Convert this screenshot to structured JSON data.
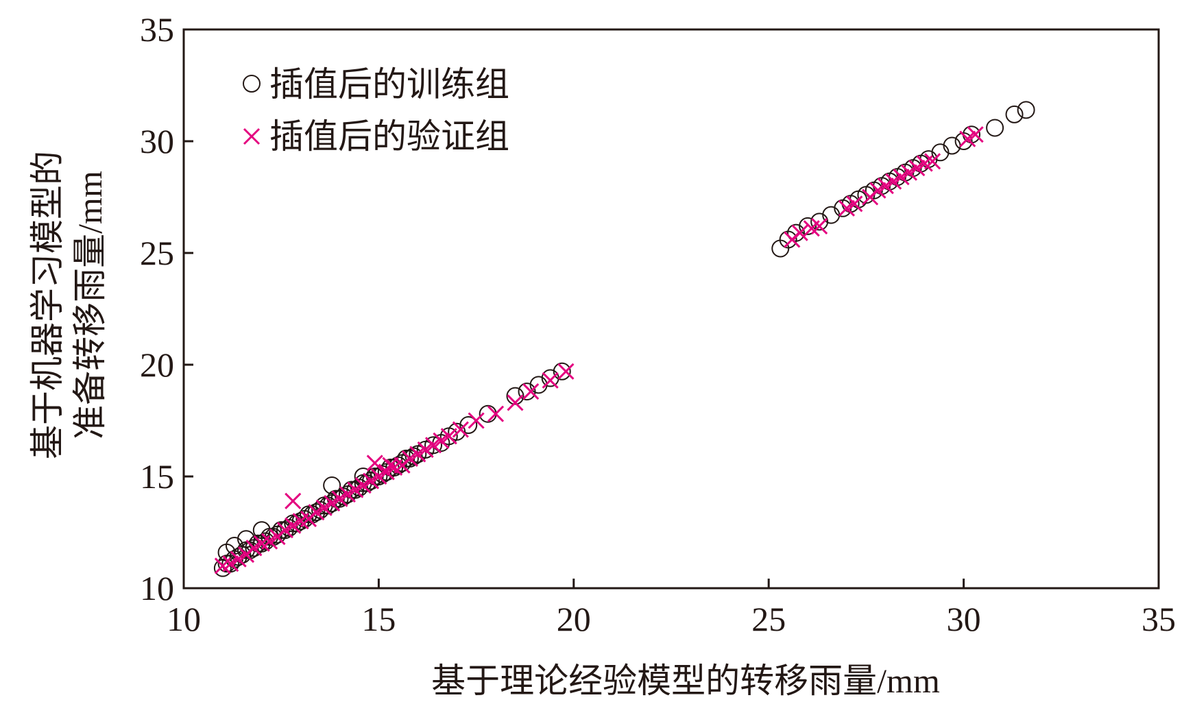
{
  "chart_data": {
    "type": "scatter",
    "xlabel": "基于理论经验模型的转移雨量/mm",
    "ylabel_lines": [
      "基于机器学习模型的",
      "准备转移雨量/mm"
    ],
    "xlim": [
      10,
      35
    ],
    "ylim": [
      10,
      35
    ],
    "xticks": [
      10,
      15,
      20,
      25,
      30,
      35
    ],
    "yticks": [
      10,
      15,
      20,
      25,
      30,
      35
    ],
    "xtick_labels": [
      "10",
      "15",
      "20",
      "25",
      "30",
      "35"
    ],
    "ytick_labels": [
      "10",
      "15",
      "20",
      "25",
      "30",
      "35"
    ],
    "grid": false,
    "legend_position": "top-left",
    "colors": {
      "train": "#231815",
      "validation": "#e4007f",
      "axis": "#231815"
    },
    "series": [
      {
        "name": "插值后的训练组",
        "marker": "circle",
        "x": [
          11.0,
          11.1,
          11.2,
          11.3,
          11.4,
          11.5,
          11.6,
          11.7,
          11.8,
          11.9,
          12.0,
          12.1,
          12.2,
          12.3,
          12.4,
          12.5,
          12.6,
          12.7,
          12.8,
          12.9,
          13.0,
          13.1,
          13.2,
          13.3,
          13.4,
          13.5,
          13.6,
          13.7,
          13.8,
          13.9,
          14.0,
          14.1,
          14.2,
          14.3,
          14.4,
          14.5,
          14.6,
          14.7,
          14.8,
          14.9,
          15.0,
          15.1,
          15.2,
          15.3,
          15.4,
          15.5,
          15.6,
          15.7,
          15.8,
          15.9,
          16.0,
          16.2,
          16.4,
          16.6,
          16.8,
          17.0,
          17.3,
          17.8,
          18.5,
          18.8,
          19.1,
          19.4,
          19.7,
          11.1,
          11.3,
          11.6,
          12.0,
          13.8,
          14.6,
          25.3,
          25.5,
          25.7,
          26.0,
          26.3,
          26.6,
          26.9,
          27.1,
          27.3,
          27.5,
          27.7,
          27.9,
          28.1,
          28.3,
          28.5,
          28.7,
          28.9,
          29.1,
          29.4,
          29.7,
          30.0,
          30.2,
          30.8,
          31.3,
          31.6
        ],
        "y": [
          10.9,
          11.1,
          11.1,
          11.3,
          11.4,
          11.5,
          11.7,
          11.7,
          11.8,
          12.0,
          12.0,
          12.1,
          12.3,
          12.3,
          12.4,
          12.6,
          12.6,
          12.7,
          12.9,
          12.9,
          13.0,
          13.1,
          13.3,
          13.3,
          13.4,
          13.5,
          13.7,
          13.7,
          13.8,
          14.0,
          14.0,
          14.1,
          14.2,
          14.4,
          14.4,
          14.5,
          14.7,
          14.7,
          14.8,
          15.0,
          15.0,
          15.1,
          15.2,
          15.4,
          15.4,
          15.5,
          15.6,
          15.8,
          15.8,
          15.9,
          16.0,
          16.2,
          16.4,
          16.5,
          16.8,
          17.0,
          17.3,
          17.8,
          18.6,
          18.8,
          19.1,
          19.4,
          19.7,
          11.6,
          11.9,
          12.2,
          12.6,
          14.6,
          15.0,
          25.2,
          25.6,
          25.9,
          26.2,
          26.4,
          26.7,
          27.0,
          27.2,
          27.4,
          27.6,
          27.8,
          28.0,
          28.2,
          28.4,
          28.6,
          28.8,
          29.0,
          29.2,
          29.5,
          29.8,
          30.0,
          30.3,
          30.6,
          31.2,
          31.4
        ]
      },
      {
        "name": "插值后的验证组",
        "marker": "cross",
        "x": [
          11.0,
          11.2,
          11.4,
          11.6,
          11.8,
          12.0,
          12.2,
          12.4,
          12.6,
          12.8,
          13.0,
          13.2,
          13.4,
          13.6,
          13.8,
          14.0,
          14.2,
          14.4,
          14.6,
          14.8,
          15.0,
          15.2,
          15.4,
          15.6,
          15.8,
          16.0,
          16.2,
          16.4,
          16.6,
          16.8,
          17.1,
          17.5,
          18.0,
          18.5,
          18.9,
          19.4,
          19.8,
          12.8,
          14.9,
          15.3,
          25.6,
          25.8,
          26.1,
          26.3,
          27.0,
          27.2,
          27.6,
          27.8,
          28.0,
          28.2,
          28.4,
          28.6,
          28.8,
          29.0,
          29.2,
          30.1,
          30.3
        ],
        "y": [
          11.0,
          11.1,
          11.3,
          11.5,
          11.8,
          12.0,
          12.1,
          12.3,
          12.6,
          12.8,
          13.0,
          13.1,
          13.4,
          13.6,
          13.8,
          14.0,
          14.2,
          14.4,
          14.6,
          14.8,
          15.0,
          15.2,
          15.4,
          15.5,
          15.8,
          16.0,
          16.2,
          16.4,
          16.6,
          16.8,
          17.1,
          17.5,
          17.8,
          18.3,
          18.8,
          19.3,
          19.7,
          13.9,
          15.6,
          15.5,
          25.6,
          25.9,
          26.1,
          26.2,
          27.0,
          27.2,
          27.5,
          27.8,
          28.0,
          28.2,
          28.4,
          28.6,
          28.8,
          29.0,
          29.1,
          30.1,
          30.3
        ]
      }
    ]
  }
}
